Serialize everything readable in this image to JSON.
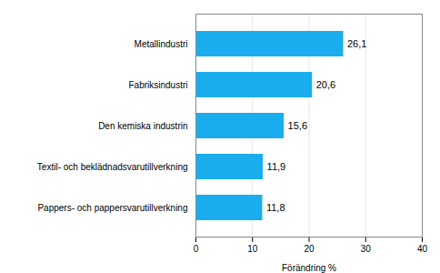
{
  "chart_data": {
    "type": "bar",
    "orientation": "horizontal",
    "categories": [
      "Pappers- och pappersvarutillverkning",
      "Textil- och beklädnadsvarutillverkning",
      "Den kemiska industrin",
      "Fabriksindustri",
      "Metallindustri"
    ],
    "values": [
      11.8,
      11.9,
      15.6,
      20.6,
      26.1
    ],
    "value_labels": [
      "11,8",
      "11,9",
      "15,6",
      "20,6",
      "26,1"
    ],
    "data_labels": true,
    "color": "#1AADEE",
    "xlabel": "Förändring %",
    "xlim": [
      0,
      40
    ],
    "xticks": [
      0,
      10,
      20,
      30,
      40
    ],
    "grid": true
  }
}
